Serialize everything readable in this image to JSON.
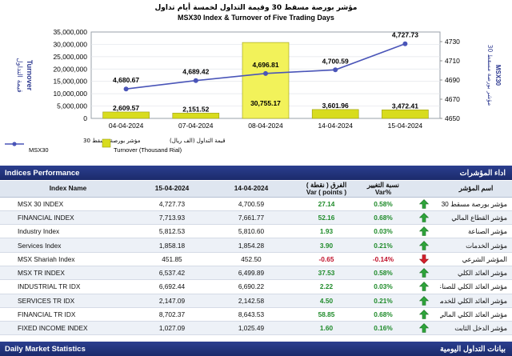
{
  "chart_data": {
    "type": "bar",
    "title_ar": "مؤشر بورصة مسقط 30 وقيمة التداول لخمسة أيام تداول",
    "title": "MSX30 Index & Turnover of Five Trading Days",
    "categories": [
      "04-04-2024",
      "07-04-2024",
      "08-04-2024",
      "14-04-2024",
      "15-04-2024"
    ],
    "series": [
      {
        "name": "Turnover (Thousand Rial)",
        "name_ar": "قيمة التداول (الف ريال)",
        "type": "bar",
        "axis": "left",
        "values": [
          2609.57,
          2151.52,
          30755.17,
          3601.96,
          3472.41
        ],
        "labels": [
          "2,609.57",
          "2,151.52",
          "30,755.17",
          "3,601.96",
          "3,472.41"
        ]
      },
      {
        "name": "MSX30",
        "name_ar": "مؤشر بورصة مسقط 30",
        "type": "line",
        "axis": "right",
        "values": [
          4680.67,
          4689.42,
          4696.81,
          4700.59,
          4727.73
        ],
        "labels": [
          "4,680.67",
          "4,689.42",
          "4,696.81",
          "4,700.59",
          "4,727.73"
        ]
      }
    ],
    "ylabel_left": "Turnover",
    "ylabel_left_ar": "قيمة التداول",
    "ylabel_right": "MSX30",
    "ylabel_right_ar": "مؤشر بورصة مسقط 30",
    "ylim_left": [
      0,
      35000000
    ],
    "yticks_left": [
      "35,000,000",
      "30,000,000",
      "25,000,000",
      "20,000,000",
      "15,000,000",
      "10,000,000",
      "5,000,000",
      "0"
    ],
    "ylim_right": [
      4650,
      4740
    ],
    "yticks_right": [
      "4730",
      "4710",
      "4690",
      "4670",
      "4650"
    ],
    "colors": {
      "bar": "#d8dc1e",
      "bar_highlight": "#f2f25a",
      "line": "#4a55b8"
    }
  },
  "perf": {
    "title": "Indices Performance",
    "title_ar": "اداء المؤشرات",
    "headers": {
      "name": "Index Name",
      "d1": "15-04-2024",
      "d2": "14-04-2024",
      "var_ar": "الفرق ( نقطة )",
      "var": "Var ( points )",
      "pct_ar": "نسبة التغيير",
      "pct": "Var%",
      "name_ar": "اسم المؤشر"
    },
    "rows": [
      {
        "name": "MSX 30 INDEX",
        "d1": "4,727.73",
        "d2": "4,700.59",
        "var": "27.14",
        "pct": "0.58%",
        "dir": "up",
        "ar": "مؤشر بورصة مسقط 30"
      },
      {
        "name": "FINANCIAL INDEX",
        "d1": "7,713.93",
        "d2": "7,661.77",
        "var": "52.16",
        "pct": "0.68%",
        "dir": "up",
        "ar": "مؤشر القطاع المالي"
      },
      {
        "name": "Industry Index",
        "d1": "5,812.53",
        "d2": "5,810.60",
        "var": "1.93",
        "pct": "0.03%",
        "dir": "up",
        "ar": "مؤشر الصناعة"
      },
      {
        "name": "Services Index",
        "d1": "1,858.18",
        "d2": "1,854.28",
        "var": "3.90",
        "pct": "0.21%",
        "dir": "up",
        "ar": "مؤشر الخدمات"
      },
      {
        "name": "MSX Shariah Index",
        "d1": "451.85",
        "d2": "452.50",
        "var": "-0.65",
        "pct": "-0.14%",
        "dir": "down",
        "ar": "المؤشر الشرعي"
      },
      {
        "name": "MSX TR INDEX",
        "d1": "6,537.42",
        "d2": "6,499.89",
        "var": "37.53",
        "pct": "0.58%",
        "dir": "up",
        "ar": "مؤشر العائد الكلي"
      },
      {
        "name": "INDUSTRIAL TR IDX",
        "d1": "6,692.44",
        "d2": "6,690.22",
        "var": "2.22",
        "pct": "0.03%",
        "dir": "up",
        "ar": "مؤشر العائد الكلي للصناعة"
      },
      {
        "name": "SERVICES TR IDX",
        "d1": "2,147.09",
        "d2": "2,142.58",
        "var": "4.50",
        "pct": "0.21%",
        "dir": "up",
        "ar": "مؤشر العائد الكلي للخدمات"
      },
      {
        "name": "FINANCIAL TR IDX",
        "d1": "8,702.37",
        "d2": "8,643.53",
        "var": "58.85",
        "pct": "0.68%",
        "dir": "up",
        "ar": "مؤشر العائد الكلي المالي"
      },
      {
        "name": "FIXED INCOME INDEX",
        "d1": "1,027.09",
        "d2": "1,025.49",
        "var": "1.60",
        "pct": "0.16%",
        "dir": "up",
        "ar": "مؤشر الدخل الثابت"
      }
    ]
  },
  "daily": {
    "title": "Daily Market Statistics",
    "title_ar": "بيانات التداول اليومية"
  }
}
